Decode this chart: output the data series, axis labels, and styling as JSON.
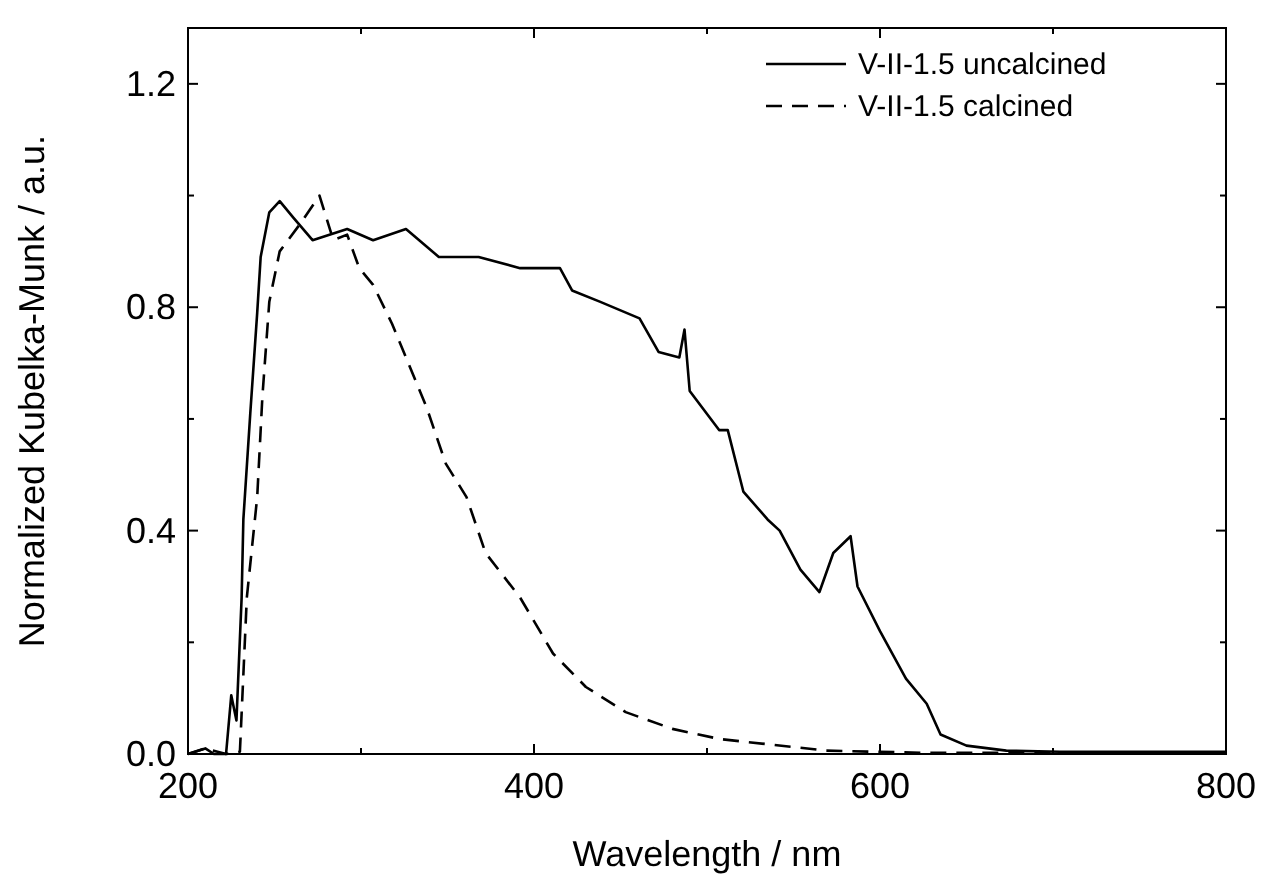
{
  "chart_data": {
    "type": "line",
    "xlabel": "Wavelength / nm",
    "ylabel": "Normalized Kubelka-Munk / a.u.",
    "xlim": [
      200,
      800
    ],
    "xticks": [
      200,
      {
        "value": 300,
        "label": null
      },
      400,
      {
        "value": 500,
        "label": null
      },
      600,
      {
        "value": 700,
        "label": null
      },
      800
    ],
    "ylim": [
      0,
      1.3
    ],
    "yticks": [
      "0.0",
      {
        "value": 0.2,
        "label": null
      },
      {
        "value": 0.4,
        "label": "0.4"
      },
      {
        "value": 0.6,
        "label": null
      },
      {
        "value": 0.8,
        "label": "0.8"
      },
      {
        "value": 1.0,
        "label": null
      },
      {
        "value": 1.2,
        "label": "1.2"
      }
    ],
    "legend": "top right",
    "grid": false,
    "series": [
      {
        "name": "V-II-1.5 uncalcined",
        "color": "#000000",
        "line_style": "solid",
        "x": [
          200,
          210,
          215,
          222,
          225,
          228,
          231,
          232,
          236,
          240,
          242,
          247,
          253,
          261,
          272,
          292,
          307,
          326,
          345,
          368,
          392,
          415,
          422,
          438,
          461,
          472,
          484,
          487,
          490,
          507,
          512,
          521,
          535,
          542,
          554,
          565,
          573,
          583,
          587,
          600,
          615,
          627,
          635,
          650,
          673,
          704,
          800
        ],
        "values": [
          0.0,
          0.01,
          0.0,
          0.0,
          0.105,
          0.06,
          0.28,
          0.42,
          0.61,
          0.79,
          0.89,
          0.97,
          0.99,
          0.96,
          0.92,
          0.94,
          0.92,
          0.94,
          0.89,
          0.89,
          0.87,
          0.87,
          0.83,
          0.81,
          0.78,
          0.72,
          0.71,
          0.76,
          0.65,
          0.58,
          0.58,
          0.47,
          0.42,
          0.4,
          0.33,
          0.29,
          0.36,
          0.39,
          0.3,
          0.22,
          0.135,
          0.09,
          0.035,
          0.015,
          0.006,
          0.004,
          0.004
        ]
      },
      {
        "name": "V-II-1.5 calcined",
        "color": "#000000",
        "line_style": "dashed",
        "x": [
          200,
          210,
          222,
          230,
          234,
          240,
          243,
          247,
          253,
          265,
          276,
          284,
          292,
          299,
          307,
          318,
          326,
          338,
          349,
          361,
          372,
          392,
          411,
          430,
          453,
          480,
          507,
          569,
          627,
          800
        ],
        "values": [
          0.0,
          0.01,
          0.0,
          0.004,
          0.28,
          0.46,
          0.64,
          0.81,
          0.9,
          0.95,
          1.0,
          0.92,
          0.93,
          0.87,
          0.84,
          0.77,
          0.71,
          0.62,
          0.52,
          0.46,
          0.36,
          0.28,
          0.18,
          0.12,
          0.075,
          0.045,
          0.027,
          0.006,
          0.002,
          0.002
        ]
      }
    ]
  }
}
